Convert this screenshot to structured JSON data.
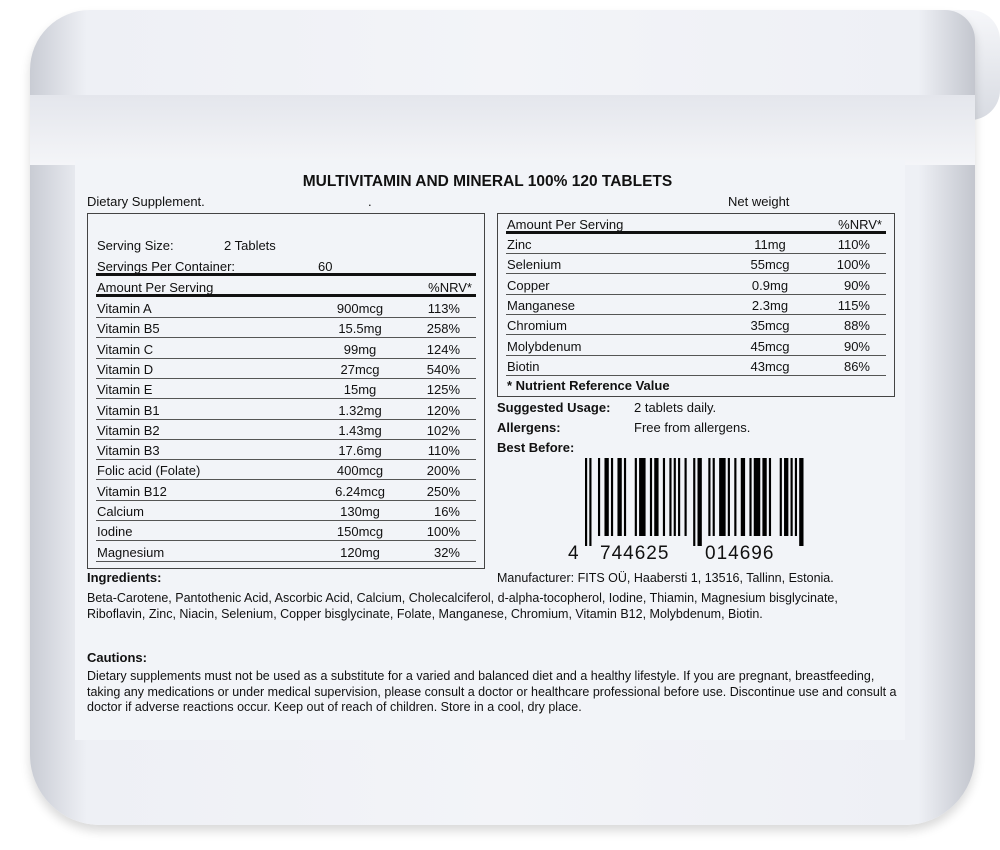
{
  "title": "MULTIVITAMIN AND MINERAL 100% 120 TABLETS",
  "subtitle": "Dietary Supplement.",
  "dot": ".",
  "net_weight_label": "Net weight",
  "serving_size_label": "Serving Size:",
  "serving_size": "2 Tablets",
  "servings_label": "Servings Per Container:",
  "servings": "60",
  "amount_header": "Amount Per Serving",
  "nrv_header": "%NRV*",
  "left_rows": [
    {
      "name": "Vitamin A",
      "amount": "900mcg",
      "nrv": "113%"
    },
    {
      "name": "Vitamin B5",
      "amount": "15.5mg",
      "nrv": "258%"
    },
    {
      "name": "Vitamin C",
      "amount": "99mg",
      "nrv": "124%"
    },
    {
      "name": "Vitamin D",
      "amount": "27mcg",
      "nrv": "540%"
    },
    {
      "name": "Vitamin E",
      "amount": "15mg",
      "nrv": "125%"
    },
    {
      "name": "Vitamin B1",
      "amount": "1.32mg",
      "nrv": "120%"
    },
    {
      "name": "Vitamin B2",
      "amount": "1.43mg",
      "nrv": "102%"
    },
    {
      "name": "Vitamin B3",
      "amount": "17.6mg",
      "nrv": "110%"
    },
    {
      "name": "Folic acid (Folate)",
      "amount": "400mcg",
      "nrv": "200%"
    },
    {
      "name": "Vitamin B12",
      "amount": "6.24mcg",
      "nrv": "250%"
    },
    {
      "name": "Calcium",
      "amount": "130mg",
      "nrv": "16%"
    },
    {
      "name": "Iodine",
      "amount": "150mcg",
      "nrv": "100%"
    },
    {
      "name": "Magnesium",
      "amount": "120mg",
      "nrv": "32%"
    }
  ],
  "right_rows": [
    {
      "name": "Zinc",
      "amount": "11mg",
      "nrv": "110%"
    },
    {
      "name": "Selenium",
      "amount": "55mcg",
      "nrv": "100%"
    },
    {
      "name": "Copper",
      "amount": "0.9mg",
      "nrv": "90%"
    },
    {
      "name": "Manganese",
      "amount": "2.3mg",
      "nrv": "115%"
    },
    {
      "name": "Chromium",
      "amount": "35mcg",
      "nrv": "88%"
    },
    {
      "name": "Molybdenum",
      "amount": "45mcg",
      "nrv": "90%"
    },
    {
      "name": "Biotin",
      "amount": "43mcg",
      "nrv": "86%"
    }
  ],
  "nrv_note": "* Nutrient Reference Value",
  "usage_label": "Suggested Usage:",
  "usage": "2 tablets daily.",
  "allergens_label": "Allergens:",
  "allergens": "Free from allergens.",
  "best_before_label": "Best Before:",
  "barcode": {
    "d1": "4",
    "d2": "744625",
    "d3": "014696"
  },
  "ingredients_label": "Ingredients:",
  "manufacturer": "Manufacturer: FITS OÜ, Haabersti 1, 13516, Tallinn, Estonia.",
  "ingredients": "Beta-Carotene, Pantothenic Acid, Ascorbic Acid, Calcium, Cholecalciferol, d-alpha-tocopherol, Iodine, Thiamin, Magnesium bisglycinate, Riboflavin, Zinc, Niacin, Selenium, Copper bisglycinate, Folate, Manganese, Chromium, Vitamin B12, Molybdenum, Biotin.",
  "cautions_label": "Cautions:",
  "cautions": "Dietary supplements must not be used as a substitute for a varied and balanced diet and a healthy lifestyle. If you are pregnant, breastfeeding, taking any medications or under medical supervision, please consult a doctor or healthcare professional before use. Discontinue use and consult a doctor if adverse reactions occur. Keep out of reach of children. Store in a cool, dry place."
}
